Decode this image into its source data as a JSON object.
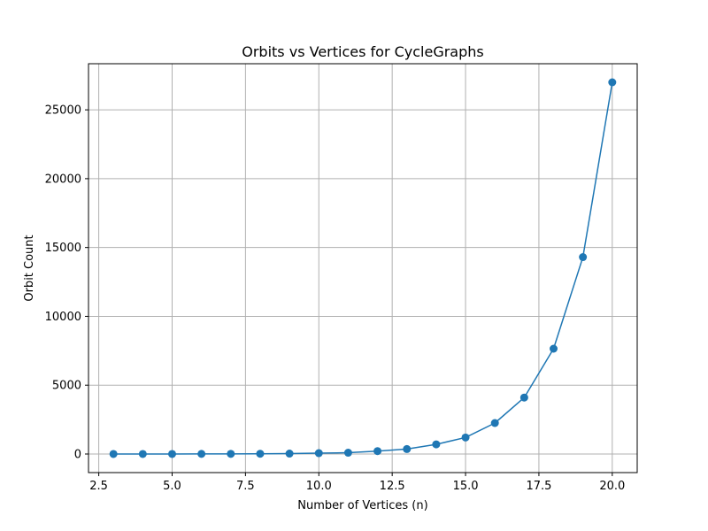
{
  "chart_data": {
    "type": "line",
    "title": "Orbits vs Vertices for CycleGraphs",
    "xlabel": "Number of Vertices (n)",
    "ylabel": "Orbit Count",
    "xlim": [
      2.15,
      20.85
    ],
    "ylim": [
      -1350,
      28350
    ],
    "xticks": [
      2.5,
      5.0,
      7.5,
      10.0,
      12.5,
      15.0,
      17.5,
      20.0
    ],
    "xtick_labels": [
      "2.5",
      "5.0",
      "7.5",
      "10.0",
      "12.5",
      "15.0",
      "17.5",
      "20.0"
    ],
    "yticks": [
      0,
      5000,
      10000,
      15000,
      20000,
      25000
    ],
    "ytick_labels": [
      "0",
      "5000",
      "10000",
      "15000",
      "20000",
      "25000"
    ],
    "grid": true,
    "series": [
      {
        "color": "#1f77b4",
        "marker": "circle",
        "x": [
          3,
          4,
          5,
          6,
          7,
          8,
          9,
          10,
          11,
          12,
          13,
          14,
          15,
          16,
          17,
          18,
          19,
          20
        ],
        "y": [
          1,
          3,
          4,
          8,
          9,
          18,
          30,
          62,
          93,
          210,
          360,
          700,
          1200,
          2250,
          4100,
          7650,
          14300,
          27000
        ]
      }
    ]
  }
}
